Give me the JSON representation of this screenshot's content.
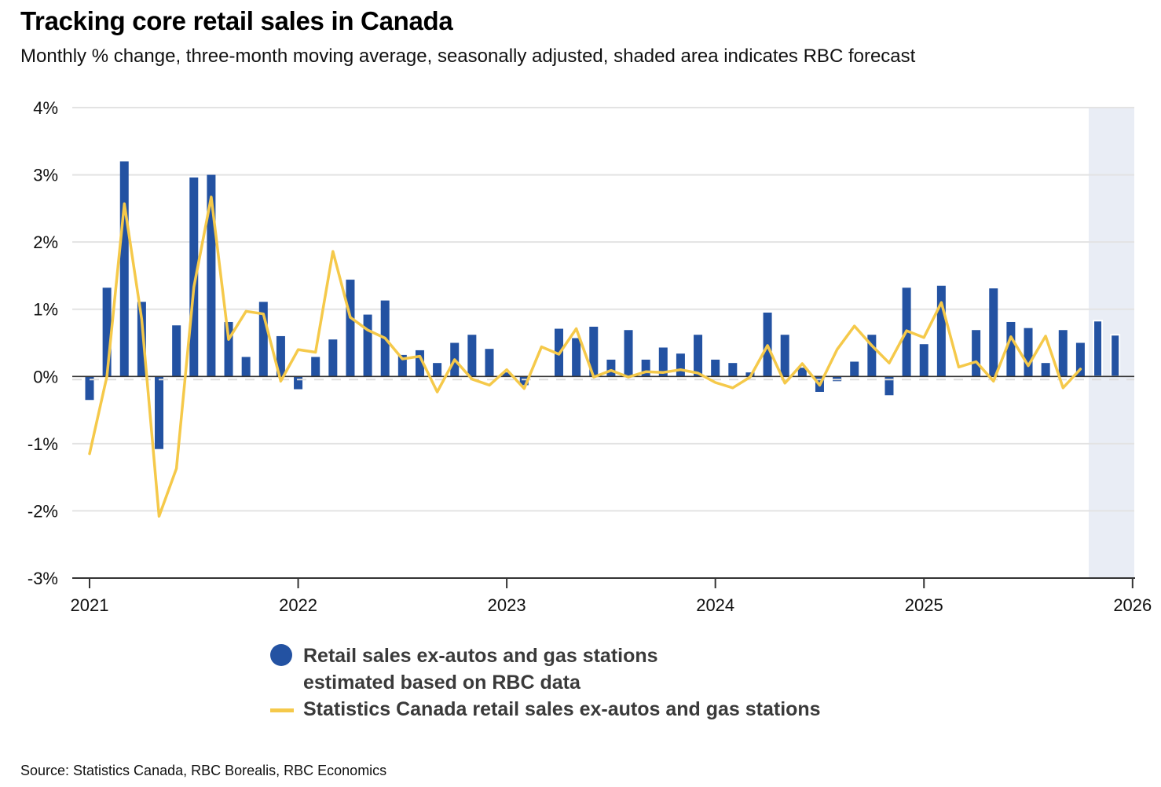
{
  "chart_data": {
    "type": "bar",
    "title": "Tracking core retail sales in Canada",
    "subtitle": "Monthly % change, three-month moving average, seasonally adjusted, shaded area indicates RBC forecast",
    "xlabel": "",
    "ylabel": "",
    "ylim": [
      -3,
      4
    ],
    "yticks": [
      4,
      3,
      2,
      1,
      0,
      -1,
      -2,
      -3
    ],
    "ytick_labels": [
      "4%",
      "3%",
      "2%",
      "1%",
      "0%",
      "-1%",
      "-2%",
      "-3%"
    ],
    "xtick_labels": [
      "2021",
      "2022",
      "2023",
      "2024",
      "2025",
      "2026"
    ],
    "grid": true,
    "legend_position": "bottom-center",
    "forecast_shading": {
      "from": "2025-11",
      "to": "2025-12",
      "color": "#e9edf5"
    },
    "x": [
      "2021-01",
      "2021-02",
      "2021-03",
      "2021-04",
      "2021-05",
      "2021-06",
      "2021-07",
      "2021-08",
      "2021-09",
      "2021-10",
      "2021-11",
      "2021-12",
      "2022-01",
      "2022-02",
      "2022-03",
      "2022-04",
      "2022-05",
      "2022-06",
      "2022-07",
      "2022-08",
      "2022-09",
      "2022-10",
      "2022-11",
      "2022-12",
      "2023-01",
      "2023-02",
      "2023-03",
      "2023-04",
      "2023-05",
      "2023-06",
      "2023-07",
      "2023-08",
      "2023-09",
      "2023-10",
      "2023-11",
      "2023-12",
      "2024-01",
      "2024-02",
      "2024-03",
      "2024-04",
      "2024-05",
      "2024-06",
      "2024-07",
      "2024-08",
      "2024-09",
      "2024-10",
      "2024-11",
      "2024-12",
      "2025-01",
      "2025-02",
      "2025-03",
      "2025-04",
      "2025-05",
      "2025-06",
      "2025-07",
      "2025-08",
      "2025-09",
      "2025-10",
      "2025-11",
      "2025-12"
    ],
    "series": [
      {
        "name": "Retail sales ex-autos and gas stations estimated based on RBC data",
        "type": "bar",
        "color": "#2352a2",
        "values": [
          -0.35,
          1.32,
          3.2,
          1.11,
          -1.08,
          0.76,
          2.96,
          3.0,
          0.81,
          0.29,
          1.11,
          0.6,
          -0.19,
          0.29,
          0.55,
          1.44,
          0.92,
          1.13,
          0.32,
          0.39,
          0.2,
          0.5,
          0.62,
          0.41,
          0.06,
          -0.13,
          0.0,
          0.71,
          0.57,
          0.74,
          0.25,
          0.69,
          0.25,
          0.43,
          0.34,
          0.62,
          0.25,
          0.2,
          0.06,
          0.95,
          0.62,
          0.13,
          -0.23,
          -0.07,
          0.22,
          0.62,
          -0.28,
          1.32,
          0.48,
          1.35,
          0.0,
          0.69,
          1.31,
          0.81,
          0.72,
          0.2,
          0.69,
          0.5,
          0.83,
          0.62
        ]
      },
      {
        "name": "Statistics Canada retail sales ex-autos and gas stations",
        "type": "line",
        "color": "#f5c94a",
        "values": [
          -1.15,
          0.0,
          2.57,
          0.85,
          -2.08,
          -1.37,
          1.33,
          2.67,
          0.55,
          0.97,
          0.93,
          -0.07,
          0.4,
          0.36,
          1.86,
          0.88,
          0.69,
          0.57,
          0.26,
          0.3,
          -0.23,
          0.25,
          -0.04,
          -0.13,
          0.1,
          -0.18,
          0.44,
          0.33,
          0.71,
          -0.01,
          0.09,
          -0.01,
          0.07,
          0.06,
          0.1,
          0.05,
          -0.09,
          -0.17,
          -0.01,
          0.46,
          -0.1,
          0.19,
          -0.13,
          0.4,
          0.75,
          0.46,
          0.2,
          0.68,
          0.58,
          1.1,
          0.14,
          0.22,
          -0.07,
          0.59,
          0.16,
          0.6,
          -0.17,
          0.11,
          null,
          null
        ]
      }
    ]
  },
  "legend": {
    "bar_label_line1": "Retail sales ex-autos and gas stations",
    "bar_label_line2": "estimated based on RBC data",
    "line_label": "Statistics Canada retail sales ex-autos and gas stations"
  },
  "source": "Source: Statistics Canada, RBC Borealis, RBC Economics"
}
